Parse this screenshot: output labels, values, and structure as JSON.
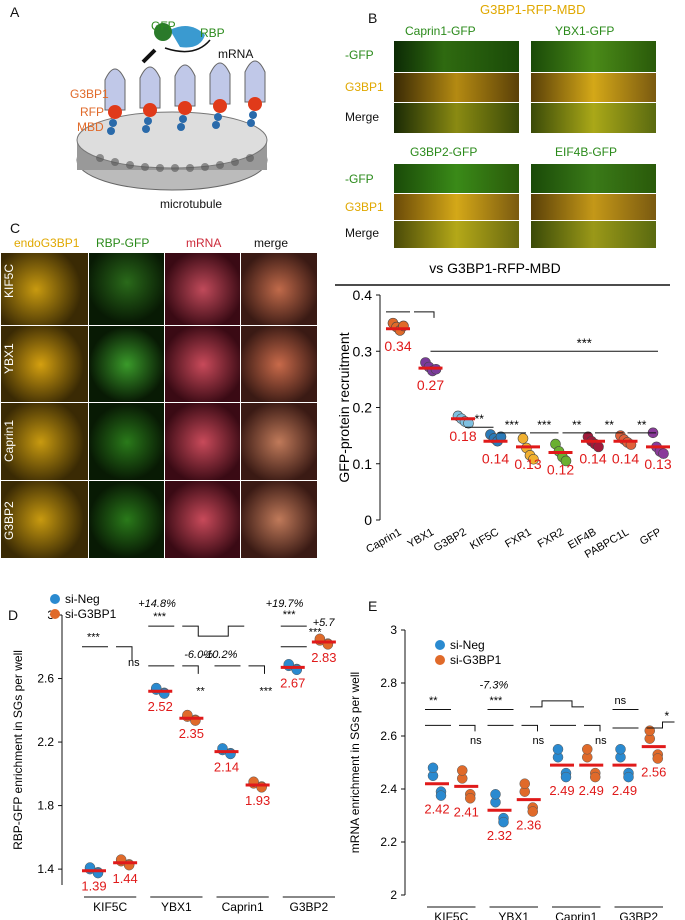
{
  "panel_a": {
    "label": "A",
    "labels": {
      "gfp": "GFP",
      "rbp": "RBP",
      "mrna": "mRNA",
      "g3bp1": "G3BP1",
      "rfp": "RFP",
      "mbd": "MBD",
      "microtubule": "microtubule"
    }
  },
  "panel_b": {
    "label": "B",
    "title": "G3BP1-RFP-MBD",
    "columns_top": [
      "Caprin1-GFP",
      "YBX1-GFP"
    ],
    "columns_bottom": [
      "G3BP2-GFP",
      "EIF4B-GFP"
    ],
    "rows": [
      "-GFP",
      "G3BP1",
      "Merge"
    ],
    "chart_title": "vs G3BP1-RFP-MBD",
    "colors": {
      "gfp": "#2a8a1a",
      "g3bp1": "#e0a800"
    }
  },
  "panel_c": {
    "label": "C",
    "columns": [
      "endoG3BP1",
      "RBP-GFP",
      "mRNA",
      "merge"
    ],
    "rows": [
      "KIF5C",
      "YBX1",
      "Caprin1",
      "G3BP2"
    ],
    "colors": {
      "endo": "#e0a800",
      "gfp": "#2a8a1a",
      "mrna": "#cc2a3a",
      "merge": "#111111"
    }
  },
  "panel_d": {
    "label": "D"
  },
  "panel_e": {
    "label": "E"
  },
  "chart_data": [
    {
      "id": "B",
      "type": "scatter",
      "title": "vs G3BP1-RFP-MBD",
      "ylabel": "GFP-protein recruitment",
      "xlabel": "",
      "ylim": [
        0,
        0.4
      ],
      "yticks": [
        "0",
        "0.1",
        "0.2",
        "0.3",
        "0.4"
      ],
      "categories": [
        "Caprin1",
        "YBX1",
        "G3BP2",
        "KIF5C",
        "FXR1",
        "FXR2",
        "EIF4B",
        "PABPC1L",
        "GFP"
      ],
      "means": [
        0.34,
        0.27,
        0.18,
        0.14,
        0.13,
        0.12,
        0.14,
        0.14,
        0.13
      ],
      "mean_labels": [
        "0.34",
        "0.27",
        "0.18",
        "0.14",
        "0.13",
        "0.12",
        "0.14",
        "0.14",
        "0.13"
      ],
      "point_colors": [
        "#e06a2a",
        "#7a3a9a",
        "#7ec0e0",
        "#2a7ab8",
        "#f0b030",
        "#6ab030",
        "#a01a3a",
        "#e0603a",
        "#8a3a9a"
      ],
      "points": [
        [
          0.35,
          0.343,
          0.337,
          0.345
        ],
        [
          0.28,
          0.272,
          0.265,
          0.268
        ],
        [
          0.185,
          0.18,
          0.175,
          0.172
        ],
        [
          0.152,
          0.145,
          0.14,
          0.148
        ],
        [
          0.145,
          0.128,
          0.115,
          0.108
        ],
        [
          0.135,
          0.122,
          0.112,
          0.105
        ],
        [
          0.148,
          0.14,
          0.135,
          0.13
        ],
        [
          0.15,
          0.143,
          0.138,
          0.134
        ],
        [
          0.155,
          0.13,
          0.122,
          0.118
        ]
      ],
      "significance": [
        {
          "from": 0,
          "to": 8,
          "y": 0.37,
          "label": "",
          "arrow": "down"
        },
        {
          "from": 1,
          "to": 8,
          "y": 0.3,
          "label": "***"
        },
        {
          "from": 2,
          "to": 3,
          "y": 0.165,
          "label": "**"
        },
        {
          "from": 3,
          "to": 4,
          "y": 0.155,
          "label": "***"
        },
        {
          "from": 4,
          "to": 5,
          "y": 0.155,
          "label": "***"
        },
        {
          "from": 5,
          "to": 6,
          "y": 0.155,
          "label": "**"
        },
        {
          "from": 6,
          "to": 7,
          "y": 0.155,
          "label": "**"
        },
        {
          "from": 7,
          "to": 8,
          "y": 0.155,
          "label": "**"
        }
      ]
    },
    {
      "id": "D",
      "type": "scatter",
      "ylabel": "RBP-GFP enrichment in SGs per well",
      "xlabel": "",
      "ylim": [
        1.3,
        3.0
      ],
      "yticks": [
        "1.4",
        "1.8",
        "2.2",
        "2.6",
        "3"
      ],
      "categories": [
        "KIF5C",
        "YBX1",
        "Caprin1",
        "G3BP2"
      ],
      "legend": [
        "si-Neg",
        "si-G3BP1"
      ],
      "legend_colors": [
        "#2a8ad0",
        "#e06a2a"
      ],
      "series": [
        {
          "name": "si-Neg",
          "means": [
            1.39,
            2.52,
            2.14,
            2.67
          ],
          "labels": [
            "1.39",
            "2.52",
            "2.14",
            "2.67"
          ]
        },
        {
          "name": "si-G3BP1",
          "means": [
            1.44,
            2.35,
            1.93,
            2.83
          ],
          "labels": [
            "1.44",
            "2.35",
            "1.93",
            "2.83"
          ]
        }
      ],
      "annotations": [
        "+14.8%",
        "-6.0%",
        "-10.2%",
        "+19.7%",
        "+5.7"
      ],
      "stars": [
        "***",
        "ns",
        "***",
        "**",
        "***",
        "***",
        "***"
      ]
    },
    {
      "id": "E",
      "type": "scatter",
      "ylabel": "mRNA enrichment in SGs per well",
      "xlabel": "",
      "ylim": [
        2.0,
        3.0
      ],
      "yticks": [
        "2",
        "2.2",
        "2.4",
        "2.6",
        "2.8",
        "3"
      ],
      "categories": [
        "KIF5C",
        "YBX1",
        "Caprin1",
        "G3BP2"
      ],
      "legend": [
        "si-Neg",
        "si-G3BP1"
      ],
      "legend_colors": [
        "#2a8ad0",
        "#e06a2a"
      ],
      "series": [
        {
          "name": "si-Neg",
          "means": [
            2.42,
            2.32,
            2.49,
            2.49
          ],
          "labels": [
            "2.42",
            "2.32",
            "2.49",
            "2.49"
          ]
        },
        {
          "name": "si-G3BP1",
          "means": [
            2.41,
            2.36,
            2.49,
            2.56
          ],
          "labels": [
            "2.41",
            "2.36",
            "2.49",
            "2.56"
          ]
        }
      ],
      "annotations": [
        "-7.3%"
      ],
      "stars": [
        "**",
        "***",
        "ns",
        "ns",
        "ns",
        "ns",
        "*"
      ]
    }
  ]
}
